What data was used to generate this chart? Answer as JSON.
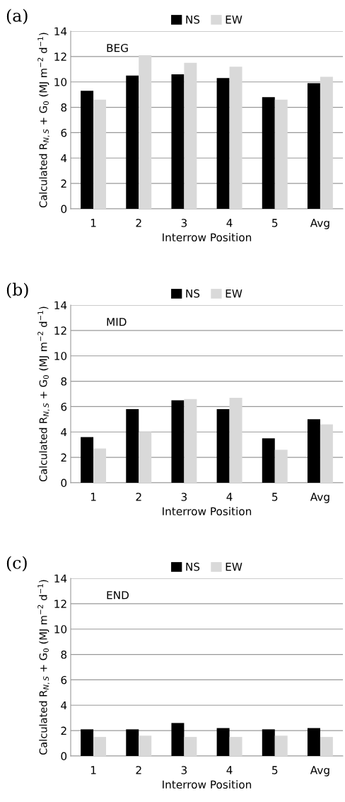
{
  "chart_data": [
    {
      "type": "bar",
      "categories": [
        "1",
        "2",
        "3",
        "4",
        "5",
        "Avg"
      ],
      "xlabel": "Interrow Position",
      "ylabel": "Calculated R$_{N,S}$ + G$_{0}$ (MJ m$^{−2}$ d$^{−1}$)",
      "annotations": [
        "(a)",
        "BEG"
      ],
      "ylim": [
        0,
        14
      ],
      "yticks": [
        0,
        2,
        4,
        6,
        8,
        10,
        12,
        14
      ],
      "grid": "y",
      "legend": "top",
      "series": [
        {
          "name": "NS",
          "color": "#000000",
          "values": [
            9.3,
            10.5,
            10.6,
            10.3,
            8.8,
            9.9
          ]
        },
        {
          "name": "EW",
          "color": "#d9d9d9",
          "values": [
            8.6,
            12.1,
            11.5,
            11.2,
            8.6,
            10.4
          ]
        }
      ]
    },
    {
      "type": "bar",
      "categories": [
        "1",
        "2",
        "3",
        "4",
        "5",
        "Avg"
      ],
      "xlabel": "Interrow Position",
      "ylabel": "Calculated R$_{N,S}$ + G$_{0}$ (MJ m$^{−2}$ d$^{−1}$)",
      "annotations": [
        "(b)",
        "MID"
      ],
      "ylim": [
        0,
        14
      ],
      "yticks": [
        0,
        2,
        4,
        6,
        8,
        10,
        12,
        14
      ],
      "grid": "y",
      "legend": "top",
      "series": [
        {
          "name": "NS",
          "color": "#000000",
          "values": [
            3.6,
            5.8,
            6.5,
            5.8,
            3.5,
            5.0
          ]
        },
        {
          "name": "EW",
          "color": "#d9d9d9",
          "values": [
            2.7,
            4.0,
            6.6,
            6.7,
            2.6,
            4.6
          ]
        }
      ]
    },
    {
      "type": "bar",
      "categories": [
        "1",
        "2",
        "3",
        "4",
        "5",
        "Avg"
      ],
      "xlabel": "Interrow Position",
      "ylabel": "Calculated R$_{N,S}$ + G$_{0}$ (MJ m$^{−2}$ d$^{−1}$)",
      "annotations": [
        "(c)",
        "END"
      ],
      "ylim": [
        0,
        14
      ],
      "yticks": [
        0,
        2,
        4,
        6,
        8,
        10,
        12,
        14
      ],
      "grid": "y",
      "legend": "top",
      "series": [
        {
          "name": "NS",
          "color": "#000000",
          "values": [
            2.1,
            2.1,
            2.6,
            2.2,
            2.1,
            2.2
          ]
        },
        {
          "name": "EW",
          "color": "#d9d9d9",
          "values": [
            1.5,
            1.6,
            1.5,
            1.5,
            1.6,
            1.5
          ]
        }
      ]
    }
  ]
}
